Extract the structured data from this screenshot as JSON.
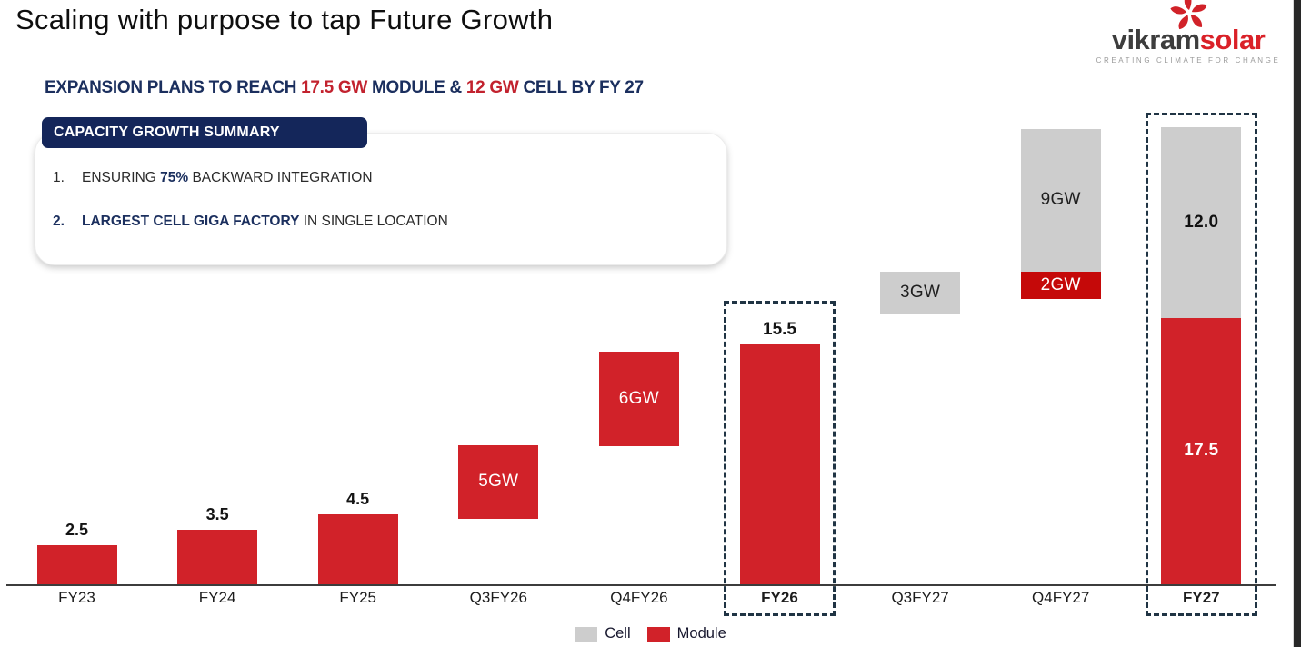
{
  "page": {
    "title": "Scaling with purpose to tap Future Growth",
    "logo": {
      "brand_dark": "vikram",
      "brand_red": "solar",
      "tagline": "CREATING CLIMATE FOR CHANGE",
      "icon": "pinwheel-icon"
    },
    "subtitle_parts": [
      {
        "text": "EXPANSION PLANS TO REACH ",
        "color": "navy"
      },
      {
        "text": "17.5 GW",
        "color": "red"
      },
      {
        "text": " MODULE & ",
        "color": "navy"
      },
      {
        "text": "12 GW",
        "color": "red"
      },
      {
        "text": " CELL BY FY 27",
        "color": "navy"
      }
    ],
    "summary": {
      "header": "CAPACITY GROWTH SUMMARY",
      "items": [
        {
          "number": "1.",
          "number_bold": false,
          "parts": [
            {
              "text": "ENSURING ",
              "bold": false,
              "navy": false
            },
            {
              "text": "75%",
              "bold": true,
              "navy": true
            },
            {
              "text": " BACKWARD INTEGRATION",
              "bold": false,
              "navy": false
            }
          ]
        },
        {
          "number": "2.",
          "number_bold": true,
          "parts": [
            {
              "text": "LARGEST CELL GIGA FACTORY",
              "bold": true,
              "navy": true
            },
            {
              "text": " IN SINGLE LOCATION",
              "bold": false,
              "navy": false
            }
          ]
        }
      ]
    }
  },
  "chart_data": {
    "type": "bar",
    "title": "Capacity growth by fiscal period (GW)",
    "unit": "GW",
    "legend_position": "bottom-center",
    "legend": [
      {
        "label": "Cell",
        "color_key": "cell_gray"
      },
      {
        "label": "Module",
        "color_key": "module_red"
      }
    ],
    "categories": [
      {
        "label": "FY23",
        "bold_axis_label": false,
        "dashed": false,
        "top_label": "2.5",
        "top_label_bold": false,
        "segments": [
          {
            "series": "Module",
            "value": 2.5,
            "gw_from": 0,
            "gw_to": 2.5,
            "color_key": "module_red",
            "label": "",
            "label_color": "",
            "label_bold": false
          }
        ]
      },
      {
        "label": "FY24",
        "bold_axis_label": false,
        "dashed": false,
        "top_label": "3.5",
        "top_label_bold": false,
        "segments": [
          {
            "series": "Module",
            "value": 3.5,
            "gw_from": 0,
            "gw_to": 3.5,
            "color_key": "module_red",
            "label": "",
            "label_color": "",
            "label_bold": false
          }
        ]
      },
      {
        "label": "FY25",
        "bold_axis_label": false,
        "dashed": false,
        "top_label": "4.5",
        "top_label_bold": false,
        "segments": [
          {
            "series": "Module",
            "value": 4.5,
            "gw_from": 0,
            "gw_to": 4.5,
            "color_key": "module_red",
            "label": "",
            "label_color": "",
            "label_bold": false
          }
        ]
      },
      {
        "label": "Q3FY26",
        "bold_axis_label": false,
        "dashed": false,
        "top_label": "",
        "top_label_bold": false,
        "segments": [
          {
            "series": "Module",
            "value": 5,
            "gw_from": 4.2,
            "gw_to": 9.0,
            "color_key": "module_red",
            "label": "5GW",
            "label_color": "#FFFFFF",
            "label_bold": false
          }
        ]
      },
      {
        "label": "Q4FY26",
        "bold_axis_label": false,
        "dashed": false,
        "top_label": "",
        "top_label_bold": false,
        "segments": [
          {
            "series": "Module",
            "value": 6,
            "gw_from": 8.9,
            "gw_to": 15.0,
            "color_key": "module_red",
            "label": "6GW",
            "label_color": "#FFFFFF",
            "label_bold": false
          }
        ]
      },
      {
        "label": "FY26",
        "bold_axis_label": true,
        "dashed": true,
        "top_label": "15.5",
        "top_label_bold": true,
        "segments": [
          {
            "series": "Module",
            "value": 15.5,
            "gw_from": 0,
            "gw_to": 15.5,
            "color_key": "module_red",
            "label": "",
            "label_color": "",
            "label_bold": false
          }
        ]
      },
      {
        "label": "Q3FY27",
        "bold_axis_label": false,
        "dashed": false,
        "top_label": "",
        "top_label_bold": false,
        "segments": [
          {
            "series": "Cell",
            "value": 3,
            "gw_from": 17.4,
            "gw_to": 20.2,
            "color_key": "cell_gray",
            "label": "3GW",
            "label_color": "#1F1F1F",
            "label_bold": false
          }
        ]
      },
      {
        "label": "Q4FY27",
        "bold_axis_label": false,
        "dashed": false,
        "top_label": "",
        "top_label_bold": false,
        "segments": [
          {
            "series": "Cell",
            "value": 9,
            "gw_from": 20.2,
            "gw_to": 29.4,
            "color_key": "cell_gray",
            "label": "9GW",
            "label_color": "#1F1F1F",
            "label_bold": false
          },
          {
            "series": "Module",
            "value": 2,
            "gw_from": 18.4,
            "gw_to": 20.2,
            "color_key": "dark_red",
            "label": "2GW",
            "label_color": "#FFFFFF",
            "label_bold": false
          }
        ]
      },
      {
        "label": "FY27",
        "bold_axis_label": true,
        "dashed": true,
        "top_label": "",
        "top_label_bold": false,
        "segments": [
          {
            "series": "Cell",
            "value": 12.0,
            "gw_from": 17.2,
            "gw_to": 29.5,
            "color_key": "cell_gray",
            "label": "12.0",
            "label_color": "#111111",
            "label_bold": true
          },
          {
            "series": "Module",
            "value": 17.5,
            "gw_from": 0,
            "gw_to": 17.2,
            "color_key": "module_red",
            "label": "17.5",
            "label_color": "#FFFFFF",
            "label_bold": true
          }
        ]
      }
    ]
  },
  "colors": {
    "module_red": "#D12229",
    "dark_red": "#C50909",
    "cell_gray": "#CDCDCD",
    "navy": "#1B2F5E",
    "navy_box": "#14265A",
    "accent_red_text": "#C2222E",
    "dash": "#203444",
    "axis": "#3C3C3C",
    "brand_dark": "#3D3D3D",
    "brand_red": "#DA2128",
    "tagline_gray": "#9B9B9B",
    "side_strip": "#282828"
  }
}
